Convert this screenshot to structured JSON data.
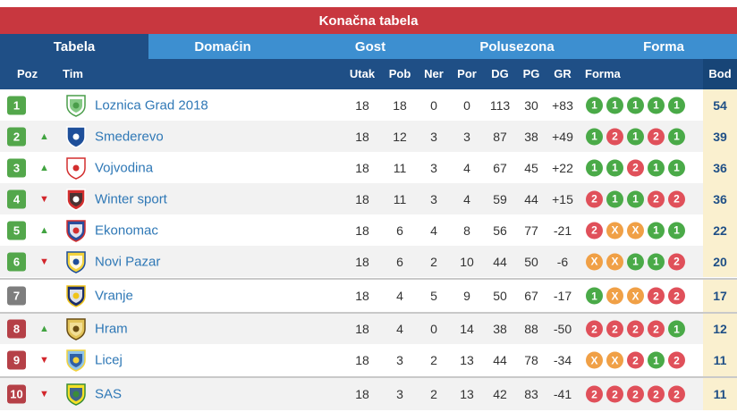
{
  "title": "Konačna tabela",
  "tabs": [
    {
      "label": "Tabela",
      "active": true
    },
    {
      "label": "Domaćin",
      "active": false
    },
    {
      "label": "Gost",
      "active": false
    },
    {
      "label": "Polusezona",
      "active": false
    },
    {
      "label": "Forma",
      "active": false
    }
  ],
  "columns": {
    "poz": "Poz",
    "tim": "Tim",
    "utak": "Utak",
    "pob": "Pob",
    "ner": "Ner",
    "por": "Por",
    "dg": "DG",
    "pg": "PG",
    "gr": "GR",
    "forma": "Forma",
    "bod": "Bod"
  },
  "colors": {
    "header": "#1f4f86",
    "title": "#c8373f",
    "tab": "#3d8fd0",
    "win": "#4aaa48",
    "loss": "#e0505a",
    "draw": "#f0a046",
    "points_bg": "#faf0cf"
  },
  "rows": [
    {
      "pos": "1",
      "badge": "green",
      "trend": "",
      "crest": "crest-green-white",
      "team": "Loznica Grad 2018",
      "utak": "18",
      "pob": "18",
      "ner": "0",
      "por": "0",
      "dg": "113",
      "pg": "30",
      "gr": "+83",
      "form": [
        "1",
        "1",
        "1",
        "1",
        "1"
      ],
      "bod": "54"
    },
    {
      "pos": "2",
      "badge": "green",
      "trend": "up",
      "crest": "crest-blue-stripes",
      "team": "Smederevo",
      "utak": "18",
      "pob": "12",
      "ner": "3",
      "por": "3",
      "dg": "87",
      "pg": "38",
      "gr": "+49",
      "form": [
        "1",
        "2",
        "1",
        "2",
        "1"
      ],
      "bod": "39"
    },
    {
      "pos": "3",
      "badge": "green",
      "trend": "up",
      "crest": "crest-red-white",
      "team": "Vojvodina",
      "utak": "18",
      "pob": "11",
      "ner": "3",
      "por": "4",
      "dg": "67",
      "pg": "45",
      "gr": "+22",
      "form": [
        "1",
        "1",
        "2",
        "1",
        "1"
      ],
      "bod": "36"
    },
    {
      "pos": "4",
      "badge": "green",
      "trend": "down",
      "crest": "crest-red-ball",
      "team": "Winter sport",
      "utak": "18",
      "pob": "11",
      "ner": "3",
      "por": "4",
      "dg": "59",
      "pg": "44",
      "gr": "+15",
      "form": [
        "2",
        "1",
        "1",
        "2",
        "2"
      ],
      "bod": "36"
    },
    {
      "pos": "5",
      "badge": "green",
      "trend": "up",
      "crest": "crest-blue-red",
      "team": "Ekonomac",
      "utak": "18",
      "pob": "6",
      "ner": "4",
      "por": "8",
      "dg": "56",
      "pg": "77",
      "gr": "-21",
      "form": [
        "2",
        "X",
        "X",
        "1",
        "1"
      ],
      "bod": "22"
    },
    {
      "pos": "6",
      "badge": "green",
      "trend": "down",
      "crest": "crest-yellow-blue",
      "team": "Novi Pazar",
      "utak": "18",
      "pob": "6",
      "ner": "2",
      "por": "10",
      "dg": "44",
      "pg": "50",
      "gr": "-6",
      "form": [
        "X",
        "X",
        "1",
        "1",
        "2"
      ],
      "bod": "20"
    },
    {
      "pos": "7",
      "badge": "gray",
      "trend": "",
      "crest": "crest-navy-yellow",
      "team": "Vranje",
      "utak": "18",
      "pob": "4",
      "ner": "5",
      "por": "9",
      "dg": "50",
      "pg": "67",
      "gr": "-17",
      "form": [
        "1",
        "X",
        "X",
        "2",
        "2"
      ],
      "bod": "17"
    },
    {
      "pos": "8",
      "badge": "red",
      "trend": "up",
      "crest": "crest-gold-cross",
      "team": "Hram",
      "utak": "18",
      "pob": "4",
      "ner": "0",
      "por": "14",
      "dg": "38",
      "pg": "88",
      "gr": "-50",
      "form": [
        "2",
        "2",
        "2",
        "2",
        "1"
      ],
      "bod": "12"
    },
    {
      "pos": "9",
      "badge": "red",
      "trend": "down",
      "crest": "crest-blue-yellow",
      "team": "Licej",
      "utak": "18",
      "pob": "3",
      "ner": "2",
      "por": "13",
      "dg": "44",
      "pg": "78",
      "gr": "-34",
      "form": [
        "X",
        "X",
        "2",
        "1",
        "2"
      ],
      "bod": "11"
    },
    {
      "pos": "10",
      "badge": "red",
      "trend": "down",
      "crest": "crest-yellow-green",
      "team": "SAS",
      "utak": "18",
      "pob": "3",
      "ner": "2",
      "por": "13",
      "dg": "42",
      "pg": "83",
      "gr": "-41",
      "form": [
        "2",
        "2",
        "2",
        "2",
        "2"
      ],
      "bod": "11"
    }
  ]
}
